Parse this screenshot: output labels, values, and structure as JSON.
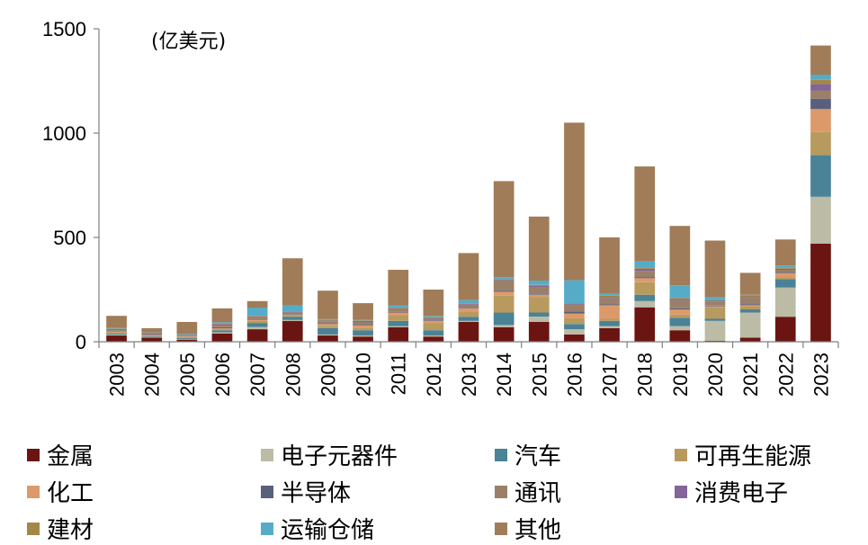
{
  "chart_data": {
    "type": "bar",
    "stacked": true,
    "unit_label": "(亿美元)",
    "ylim": [
      0,
      1500
    ],
    "yticks": [
      "0",
      "500",
      "1000",
      "1500"
    ],
    "categories": [
      "2003",
      "2004",
      "2005",
      "2006",
      "2007",
      "2008",
      "2009",
      "2010",
      "2011",
      "2012",
      "2013",
      "2014",
      "2015",
      "2016",
      "2017",
      "2018",
      "2019",
      "2020",
      "2021",
      "2022",
      "2023"
    ],
    "series": [
      {
        "name": "金属",
        "color": "#6b1512",
        "values": [
          30,
          20,
          10,
          40,
          60,
          100,
          30,
          25,
          70,
          25,
          95,
          70,
          95,
          35,
          65,
          165,
          55,
          5,
          20,
          120,
          470
        ]
      },
      {
        "name": "电子元器件",
        "color": "#bbbba6",
        "values": [
          5,
          3,
          2,
          5,
          10,
          5,
          5,
          5,
          5,
          5,
          5,
          10,
          25,
          25,
          10,
          30,
          20,
          95,
          120,
          140,
          225
        ]
      },
      {
        "name": "汽车",
        "color": "#4a8296",
        "values": [
          5,
          3,
          5,
          10,
          20,
          15,
          30,
          25,
          25,
          25,
          20,
          60,
          20,
          25,
          25,
          30,
          40,
          10,
          15,
          40,
          200
        ]
      },
      {
        "name": "可再生能源",
        "color": "#b89a5e",
        "values": [
          5,
          3,
          5,
          5,
          10,
          5,
          10,
          10,
          25,
          35,
          25,
          80,
          75,
          30,
          10,
          60,
          15,
          55,
          15,
          10,
          110
        ]
      },
      {
        "name": "化工",
        "color": "#dc9a6a",
        "values": [
          5,
          3,
          5,
          5,
          5,
          5,
          10,
          15,
          15,
          10,
          15,
          20,
          10,
          20,
          65,
          20,
          25,
          5,
          5,
          20,
          110
        ]
      },
      {
        "name": "半导体",
        "color": "#59607e",
        "values": [
          3,
          2,
          2,
          5,
          3,
          3,
          3,
          5,
          3,
          3,
          3,
          5,
          3,
          10,
          5,
          5,
          5,
          3,
          5,
          5,
          50
        ]
      },
      {
        "name": "通讯",
        "color": "#9a8069",
        "values": [
          5,
          3,
          3,
          10,
          10,
          5,
          10,
          10,
          15,
          10,
          15,
          45,
          35,
          30,
          30,
          30,
          40,
          20,
          30,
          10,
          40
        ]
      },
      {
        "name": "消费电子",
        "color": "#836599",
        "values": [
          3,
          2,
          2,
          5,
          3,
          3,
          3,
          5,
          3,
          3,
          3,
          5,
          5,
          5,
          5,
          10,
          5,
          3,
          5,
          5,
          30
        ]
      },
      {
        "name": "建材",
        "color": "#a48747",
        "values": [
          3,
          2,
          2,
          3,
          3,
          3,
          3,
          3,
          3,
          3,
          3,
          5,
          5,
          5,
          5,
          5,
          5,
          3,
          5,
          5,
          20
        ]
      },
      {
        "name": "运输仓储",
        "color": "#56acc7",
        "values": [
          5,
          3,
          3,
          5,
          40,
          30,
          5,
          5,
          10,
          5,
          15,
          10,
          20,
          110,
          10,
          30,
          60,
          15,
          5,
          10,
          25
        ]
      },
      {
        "name": "其他",
        "color": "#a07c58",
        "values": [
          55,
          21,
          56,
          67,
          31,
          226,
          136,
          77,
          171,
          126,
          226,
          460,
          307,
          755,
          270,
          455,
          285,
          271,
          105,
          125,
          140
        ]
      }
    ]
  }
}
